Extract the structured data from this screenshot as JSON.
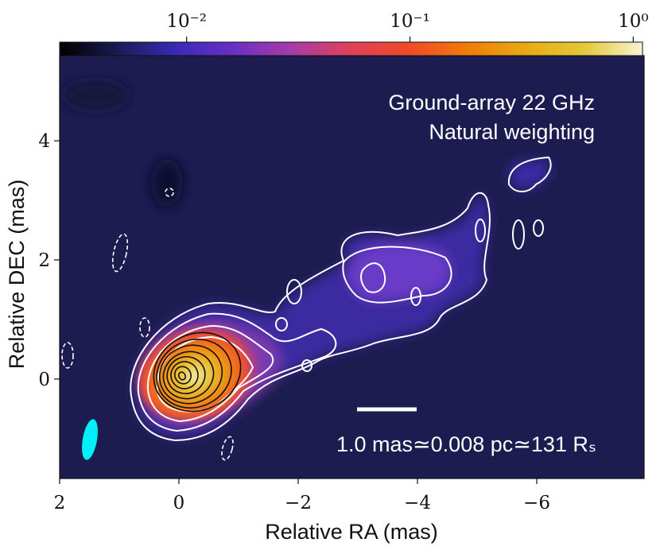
{
  "chart_data": {
    "type": "image",
    "xlabel": "Relative RA (mas)",
    "ylabel": "Relative DEC (mas)",
    "annotations": [
      "Ground-array 22 GHz",
      "Natural weighting"
    ],
    "xlim": [
      2,
      -7.8
    ],
    "ylim": [
      -1.67,
      5.43
    ],
    "xticks": [
      2,
      0,
      {
        "value": -2,
        "label": "−2"
      },
      {
        "value": -4,
        "label": "−4"
      },
      {
        "value": -6,
        "label": "−6"
      }
    ],
    "yticks": [
      0,
      2,
      4
    ],
    "colorbar": {
      "lim": [
        0.0027,
        1.1
      ],
      "log": true,
      "ticks": [
        {
          "value": 0.01,
          "label": "10⁻²"
        },
        {
          "value": 0.1,
          "label": "10⁻¹"
        },
        {
          "value": 1,
          "label": "10⁰"
        }
      ],
      "colormap": [
        "#000000",
        "#1b1a55",
        "#3a2ab8",
        "#6a30c4",
        "#a83ca6",
        "#e0405a",
        "#f04a28",
        "#f07c08",
        "#e8aa14",
        "#e2c838",
        "#f8f4d4"
      ]
    },
    "scale_bar": {
      "length": 1.0,
      "label": "1.0 mas≃0.008 pc≃131 Rₛ"
    }
  }
}
